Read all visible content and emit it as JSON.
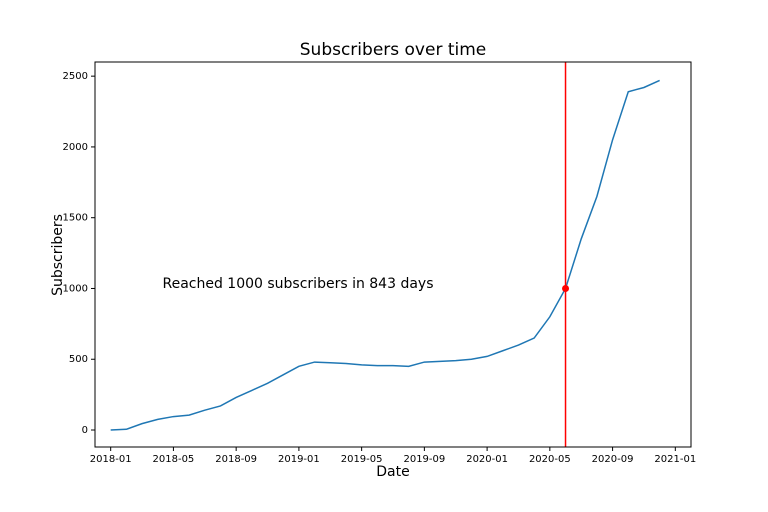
{
  "chart_data": {
    "type": "line",
    "title": "Subscribers over time",
    "x_label": "Date",
    "y_label": "Subscribers",
    "x": [
      "2018-01",
      "2018-02",
      "2018-03",
      "2018-04",
      "2018-05",
      "2018-06",
      "2018-07",
      "2018-08",
      "2018-09",
      "2018-10",
      "2018-11",
      "2018-12",
      "2019-01",
      "2019-02",
      "2019-03",
      "2019-04",
      "2019-05",
      "2019-06",
      "2019-07",
      "2019-08",
      "2019-09",
      "2019-10",
      "2019-11",
      "2019-12",
      "2020-01",
      "2020-02",
      "2020-03",
      "2020-04",
      "2020-05",
      "2020-06",
      "2020-07",
      "2020-08",
      "2020-09",
      "2020-10",
      "2020-11",
      "2020-12"
    ],
    "values": [
      0,
      5,
      45,
      75,
      95,
      105,
      140,
      170,
      230,
      280,
      330,
      390,
      450,
      480,
      475,
      470,
      460,
      455,
      455,
      450,
      480,
      485,
      490,
      500,
      520,
      560,
      600,
      650,
      800,
      1000,
      1350,
      1650,
      2050,
      2390,
      2420,
      2470
    ],
    "color": "#1f77b4",
    "xlim": [
      "2017-12",
      "2021-02"
    ],
    "xticks": [
      "2018-01",
      "2018-05",
      "2018-09",
      "2019-01",
      "2019-05",
      "2019-09",
      "2020-01",
      "2020-05",
      "2020-09",
      "2021-01"
    ],
    "ylim": [
      -120,
      2600
    ],
    "yticks": [
      0,
      500,
      1000,
      1500,
      2000,
      2500
    ],
    "grid": false,
    "vline": {
      "x": "2020-06",
      "color": "#ff0000"
    },
    "marker": {
      "x": "2020-06",
      "y": 1000,
      "color": "#ff0000"
    },
    "annotation": {
      "text": "Reached 1000 subscribers in 843 days",
      "color": "#ff0000"
    }
  }
}
